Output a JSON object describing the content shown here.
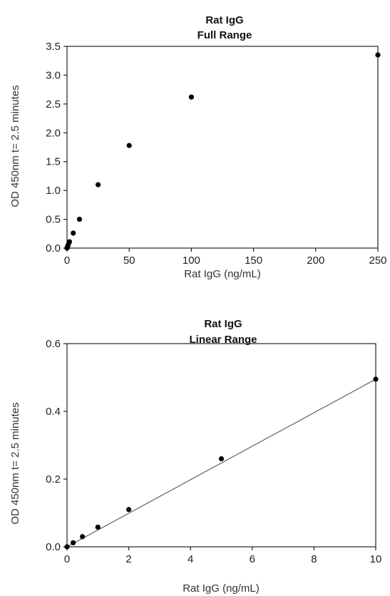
{
  "chart_data": [
    {
      "type": "scatter",
      "title": "Rat IgG",
      "subtitle": "Full Range",
      "xlabel": "Rat IgG (ng/mL)",
      "ylabel": "OD 450nm t= 2.5 minutes",
      "xlim": [
        0,
        250
      ],
      "ylim": [
        0,
        3.5
      ],
      "xticks": [
        "0",
        "50",
        "100",
        "150",
        "200",
        "250"
      ],
      "yticks": [
        "0.0",
        "0.5",
        "1.0",
        "1.5",
        "2.0",
        "2.5",
        "3.0",
        "3.5"
      ],
      "grid": false,
      "series": [
        {
          "x": [
            0,
            0.2,
            0.5,
            1,
            2,
            5,
            10,
            25,
            50,
            100,
            250
          ],
          "y": [
            0.0,
            0.01,
            0.03,
            0.06,
            0.11,
            0.26,
            0.5,
            1.1,
            1.78,
            2.62,
            3.35
          ]
        }
      ]
    },
    {
      "type": "scatter",
      "title": "Rat IgG",
      "subtitle": "Linear Range",
      "xlabel": "Rat IgG (ng/mL)",
      "ylabel": "OD 450nm t= 2.5 minutes",
      "xlim": [
        0,
        10
      ],
      "ylim": [
        0,
        0.6
      ],
      "xticks": [
        "0",
        "2",
        "4",
        "6",
        "8",
        "10"
      ],
      "yticks": [
        "0.0",
        "0.2",
        "0.4",
        "0.6"
      ],
      "grid": false,
      "trendline": {
        "intercept": 0.0,
        "slope": 0.0495
      },
      "series": [
        {
          "x": [
            0,
            0.2,
            0.5,
            1,
            2,
            5,
            10
          ],
          "y": [
            0.0,
            0.012,
            0.03,
            0.058,
            0.11,
            0.26,
            0.495
          ]
        }
      ]
    }
  ]
}
